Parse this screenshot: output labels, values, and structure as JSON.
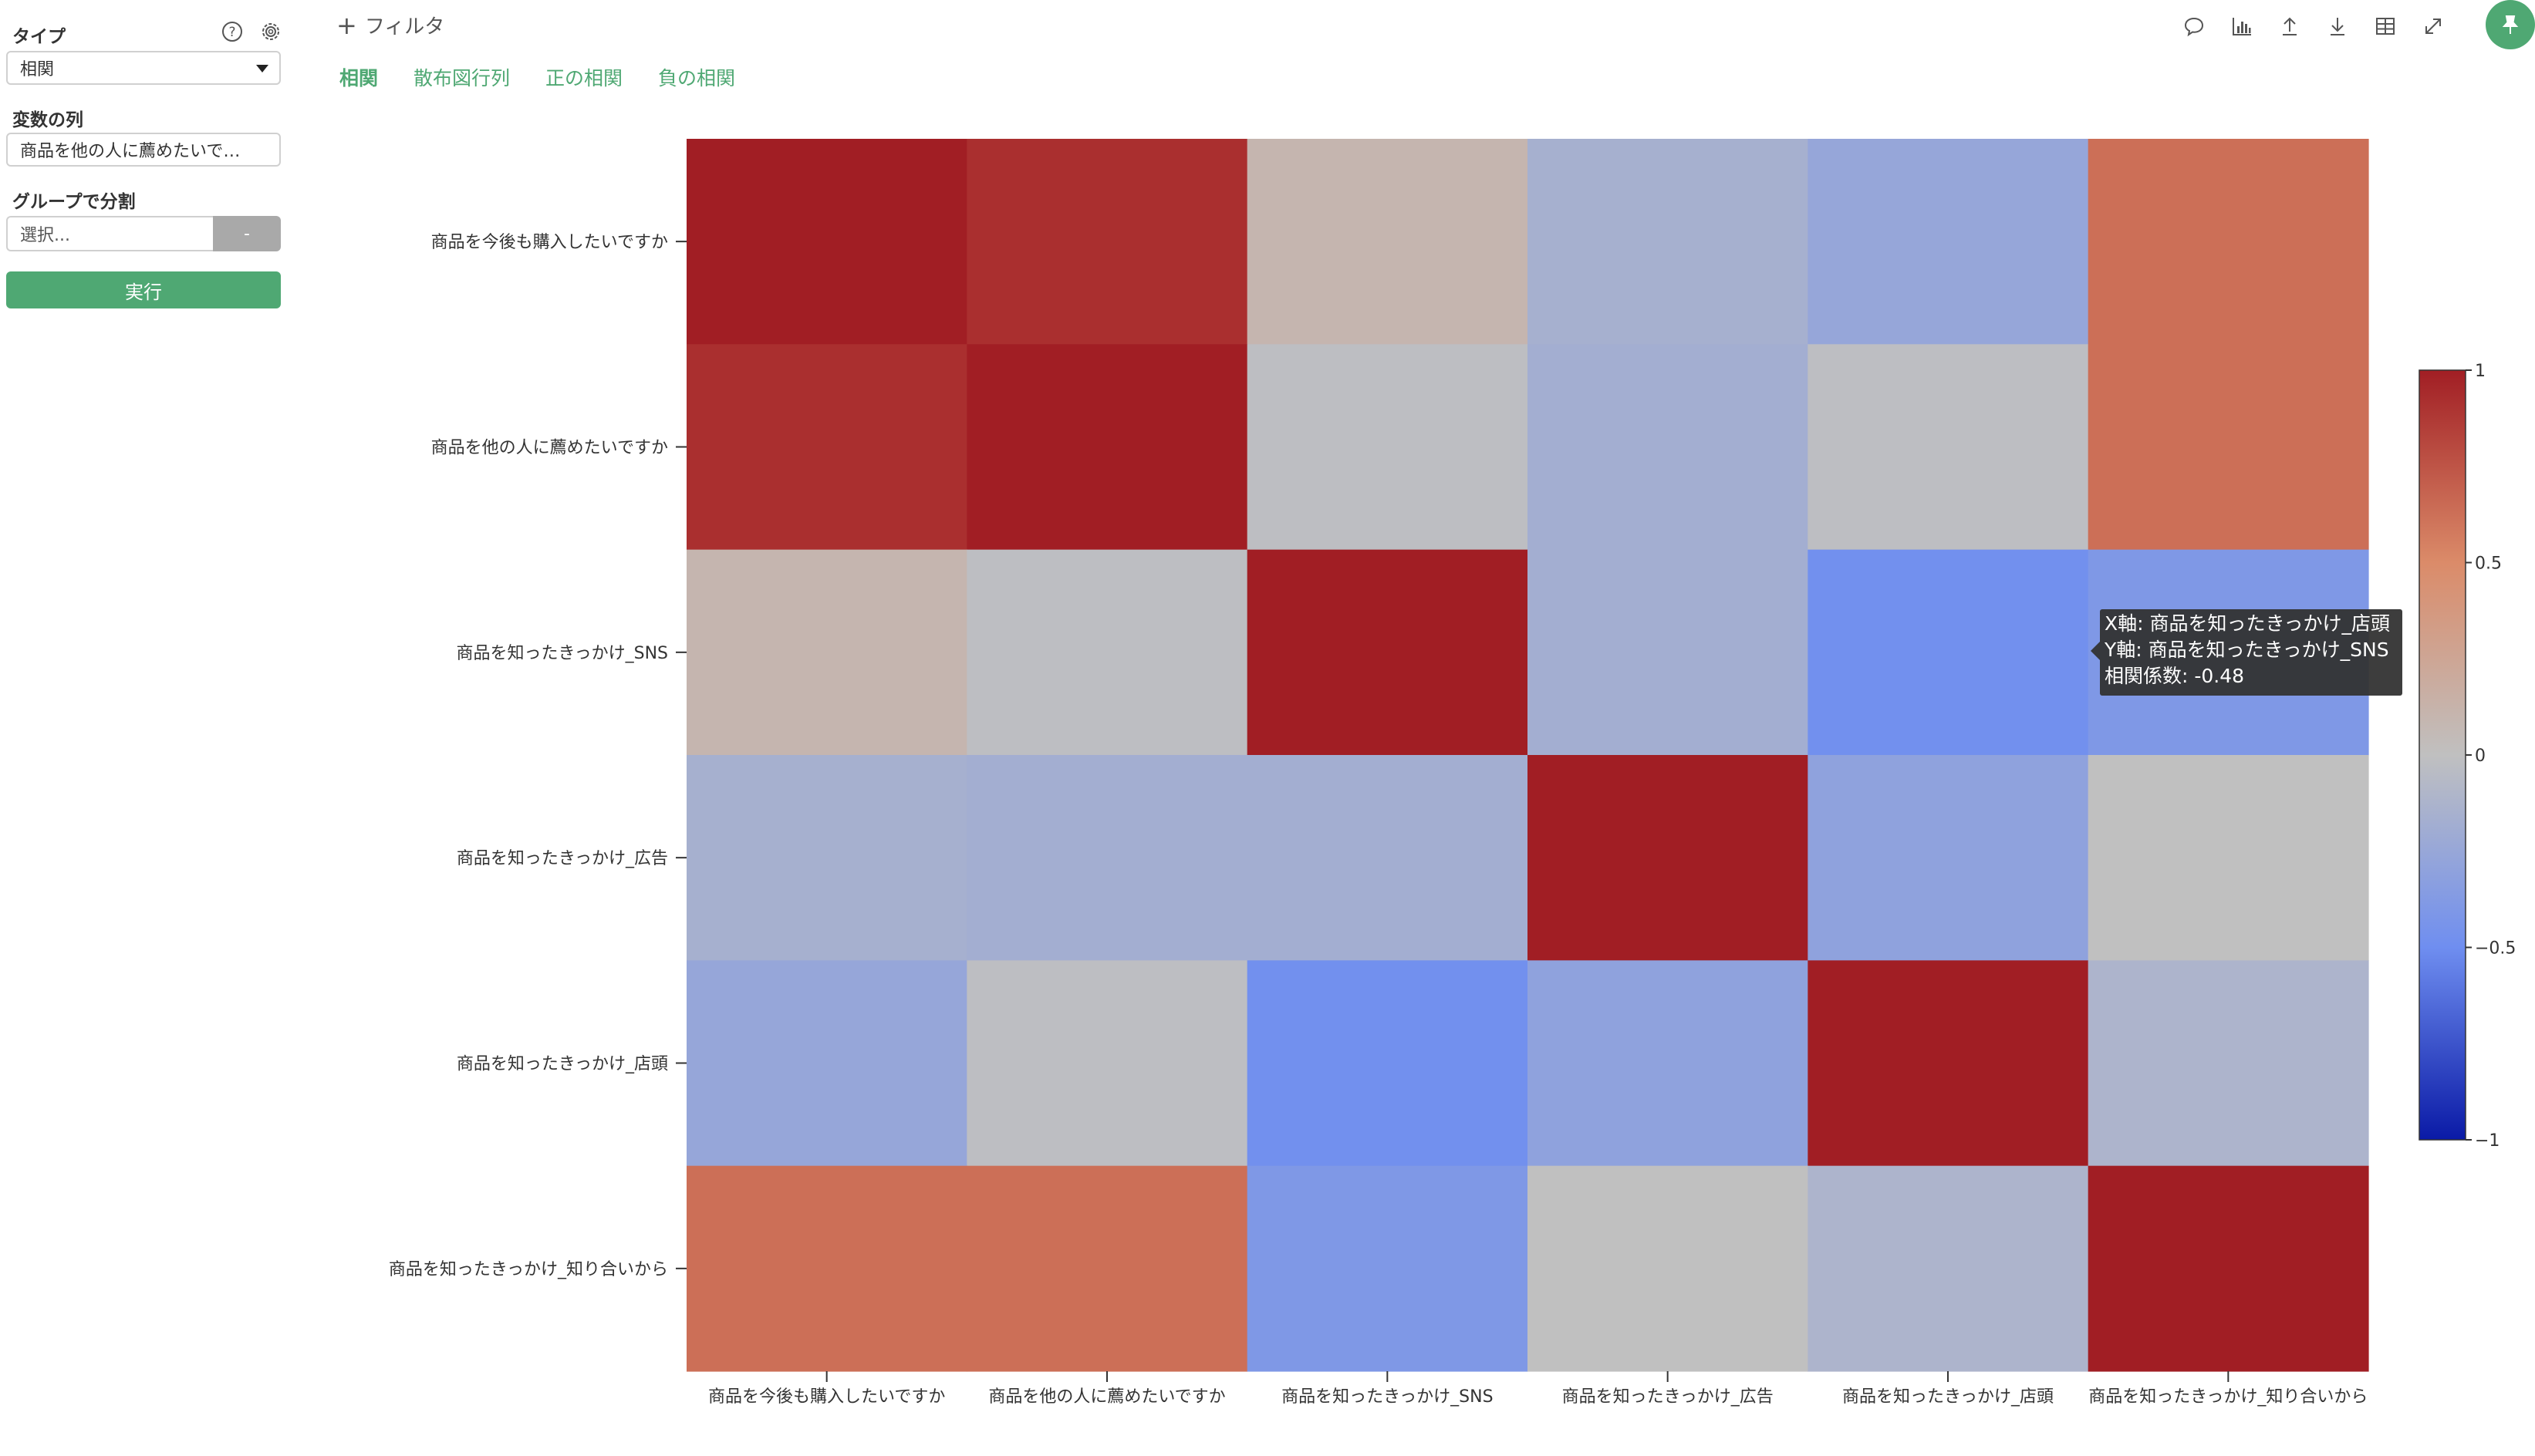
{
  "sidebar": {
    "type_label": "タイプ",
    "type_value": "相関",
    "vars_label": "変数の列",
    "vars_value": "商品を他の人に薦めたいで…",
    "group_label": "グループで分割",
    "group_placeholder": "選択...",
    "group_btn": "-",
    "run_label": "実行",
    "icons": [
      "help-icon",
      "gear-icon"
    ]
  },
  "header": {
    "filter_label": "フィルタ",
    "tabs": [
      {
        "label": "相関",
        "active": true
      },
      {
        "label": "散布図行列",
        "active": false
      },
      {
        "label": "正の相関",
        "active": false
      },
      {
        "label": "負の相関",
        "active": false
      }
    ],
    "toolbar_icons": [
      "comment-icon",
      "chart-icon",
      "upload-icon",
      "download-icon",
      "table-icon",
      "expand-icon",
      "pin-icon"
    ]
  },
  "tooltip": {
    "x_line": "X軸: 商品を知ったきっかけ_店頭",
    "y_line": "Y軸: 商品を知ったきっかけ_SNS",
    "value_line": "相関係数: -0.48"
  },
  "chart_data": {
    "type": "heatmap",
    "x_labels": [
      "商品を今後も購入したいですか",
      "商品を他の人に薦めたいですか",
      "商品を知ったきっかけ_SNS",
      "商品を知ったきっかけ_広告",
      "商品を知ったきっかけ_店頭",
      "商品を知ったきっかけ_知り合いから"
    ],
    "y_labels": [
      "商品を今後も購入したいですか",
      "商品を他の人に薦めたいですか",
      "商品を知ったきっかけ_SNS",
      "商品を知ったきっかけ_広告",
      "商品を知ったきっかけ_店頭",
      "商品を知ったきっかけ_知り合いから"
    ],
    "matrix": [
      [
        1.0,
        0.92,
        0.1,
        -0.16,
        -0.26,
        0.63
      ],
      [
        0.92,
        1.0,
        -0.02,
        -0.18,
        -0.02,
        0.63
      ],
      [
        0.1,
        -0.02,
        1.0,
        -0.18,
        -0.48,
        -0.4
      ],
      [
        -0.16,
        -0.18,
        -0.18,
        1.0,
        -0.3,
        0.0
      ],
      [
        -0.26,
        -0.02,
        -0.48,
        -0.3,
        1.0,
        -0.12
      ],
      [
        0.63,
        0.63,
        -0.4,
        0.0,
        -0.12,
        1.0
      ]
    ],
    "colorbar": {
      "min": -1,
      "max": 1,
      "ticks": [
        "1",
        "0.5",
        "0",
        "−0.5",
        "−1"
      ],
      "colormap": "coolwarm"
    }
  },
  "colors": {
    "accent": "#4fa873",
    "tooltip_bg": "#333333"
  }
}
